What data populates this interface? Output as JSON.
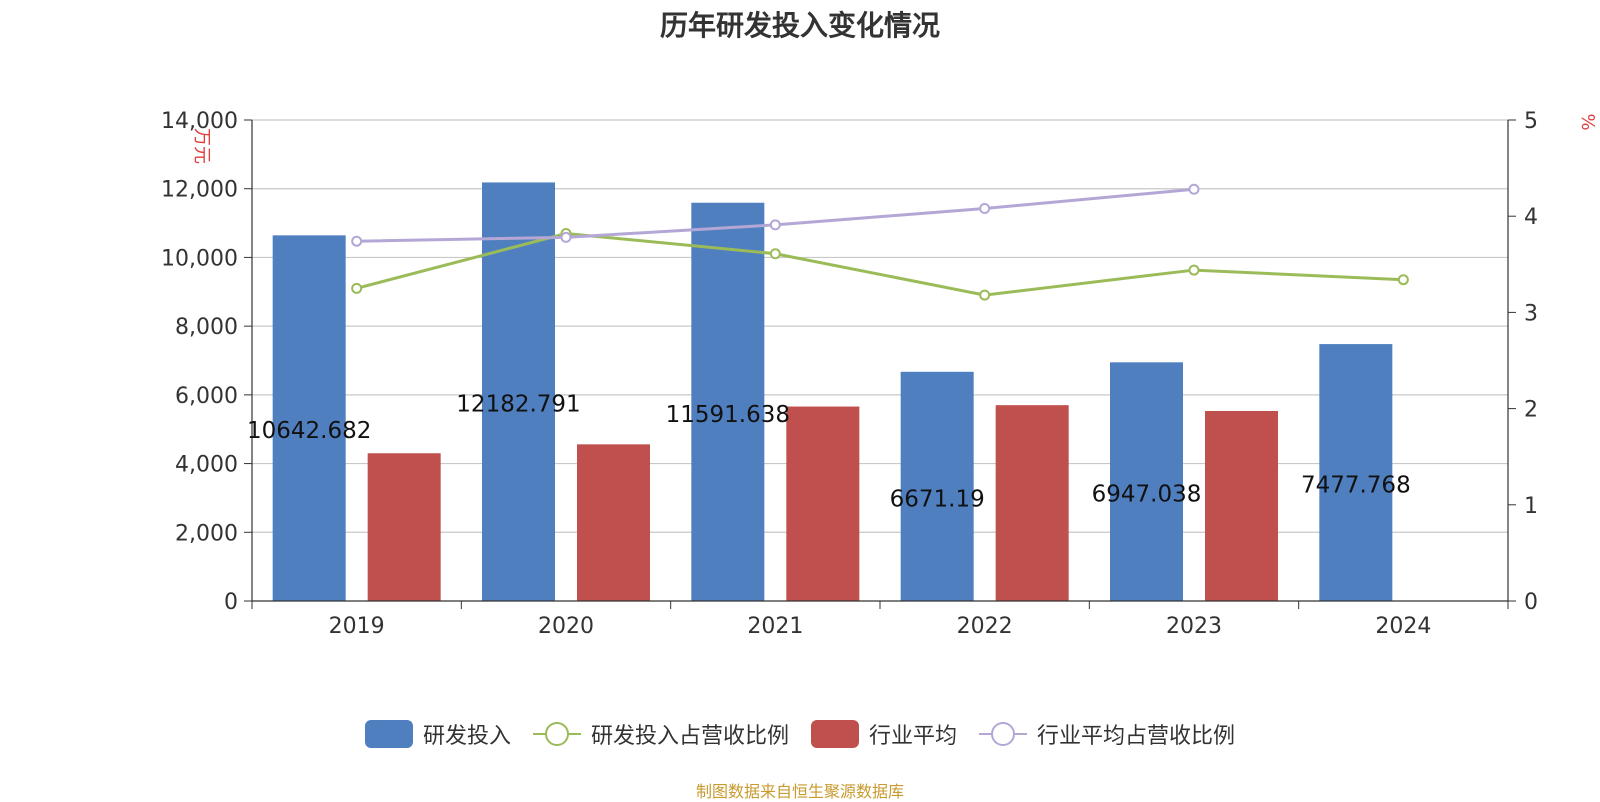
{
  "chart_data": {
    "title": "历年研发投入变化情况",
    "source_note": "制图数据来自恒生聚源数据库",
    "type": "bar",
    "categories": [
      "2019",
      "2020",
      "2021",
      "2022",
      "2023",
      "2024"
    ],
    "y_left": {
      "label": "万元",
      "min": 0,
      "max": 14000,
      "ticks": [
        "0",
        "2,000",
        "4,000",
        "6,000",
        "8,000",
        "10,000",
        "12,000",
        "14,000"
      ]
    },
    "y_right": {
      "label": "%",
      "min": 0,
      "max": 5,
      "ticks": [
        "0",
        "1",
        "2",
        "3",
        "4",
        "5"
      ]
    },
    "series": [
      {
        "name": "研发投入",
        "type": "bar",
        "axis": "left",
        "color": "#4f7fbf",
        "values": [
          10642.682,
          12182.791,
          11591.638,
          6671.19,
          6947.038,
          7477.768
        ],
        "labels": [
          "10642.682",
          "12182.791",
          "11591.638",
          "6671.19",
          "6947.038",
          "7477.768"
        ]
      },
      {
        "name": "研发投入占营收比例",
        "type": "line",
        "axis": "right",
        "color": "#9bbb59",
        "values": [
          3.25,
          3.82,
          3.61,
          3.18,
          3.44,
          3.34
        ]
      },
      {
        "name": "行业平均",
        "type": "bar",
        "axis": "left",
        "color": "#c0504d",
        "values": [
          4300,
          4560,
          5660,
          5700,
          5530,
          null
        ]
      },
      {
        "name": "行业平均占营收比例",
        "type": "line",
        "axis": "right",
        "color": "#b4a7d6",
        "values": [
          3.74,
          3.78,
          3.91,
          4.08,
          4.28,
          null
        ]
      }
    ],
    "grid": true,
    "legend_position": "bottom"
  }
}
